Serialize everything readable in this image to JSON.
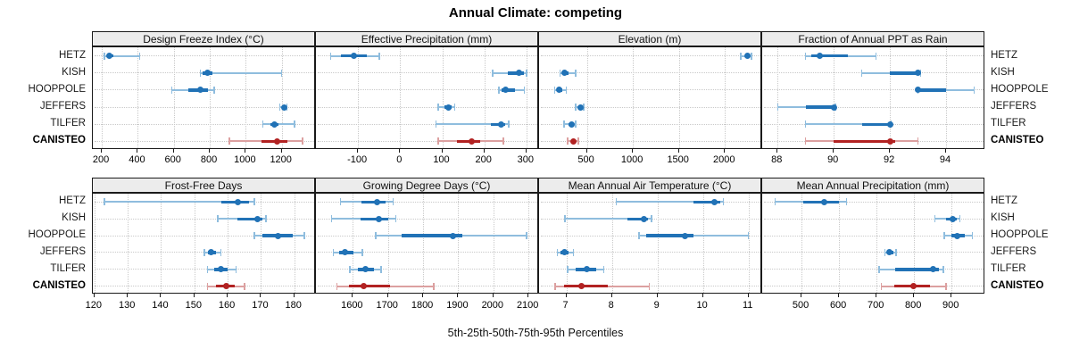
{
  "title": "Annual Climate: competing",
  "caption": "5th-25th-50th-75th-95th Percentiles",
  "stations": [
    "HETZ",
    "KISH",
    "HOOPPOLE",
    "JEFFERS",
    "TILFER",
    "CANISTEO"
  ],
  "highlight_station": "CANISTEO",
  "colors": {
    "series_solid": "#2172b6",
    "series_light": "#8fbdde",
    "highlight_solid": "#b22222",
    "highlight_light": "#dca0a0",
    "grid": "#c9c9c9",
    "strip_bg": "#ececec",
    "border": "#1a1a1a"
  },
  "chart_data": {
    "type": "dotplot",
    "subtype": "percentile-intervals",
    "percentile_labels": [
      "5th",
      "25th",
      "50th",
      "75th",
      "95th"
    ],
    "legend_position": "none",
    "grid": "dotted",
    "panels": [
      {
        "title": "Design Freeze Index (°C)",
        "row": 0,
        "col": 0,
        "xlim": [
          150,
          1390
        ],
        "ticks": [
          200,
          400,
          600,
          800,
          1000,
          1200
        ],
        "series": [
          {
            "station": "HETZ",
            "values": [
              215,
              228,
              240,
              265,
              410
            ]
          },
          {
            "station": "KISH",
            "values": [
              748,
              762,
              785,
              815,
              1200
            ]
          },
          {
            "station": "HOOPPOLE",
            "values": [
              590,
              680,
              750,
              790,
              825
            ]
          },
          {
            "station": "JEFFERS",
            "values": [
              1188,
              1202,
              1212,
              1222,
              1230
            ]
          },
          {
            "station": "TILFER",
            "values": [
              1095,
              1135,
              1158,
              1180,
              1270
            ]
          },
          {
            "station": "CANISTEO",
            "values": [
              910,
              1085,
              1175,
              1230,
              1315
            ]
          }
        ]
      },
      {
        "title": "Effective Precipitation (mm)",
        "row": 0,
        "col": 1,
        "xlim": [
          -200,
          330
        ],
        "ticks": [
          -100,
          0,
          100,
          200,
          300
        ],
        "series": [
          {
            "station": "HETZ",
            "values": [
              -165,
              -140,
              -110,
              -80,
              -50
            ]
          },
          {
            "station": "KISH",
            "values": [
              220,
              255,
              283,
              293,
              300
            ]
          },
          {
            "station": "HOOPPOLE",
            "values": [
              235,
              242,
              250,
              272,
              295
            ]
          },
          {
            "station": "JEFFERS",
            "values": [
              90,
              105,
              115,
              123,
              130
            ]
          },
          {
            "station": "TILFER",
            "values": [
              85,
              215,
              240,
              250,
              258
            ]
          },
          {
            "station": "CANISTEO",
            "values": [
              90,
              135,
              170,
              190,
              245
            ]
          }
        ]
      },
      {
        "title": "Elevation (m)",
        "row": 0,
        "col": 2,
        "xlim": [
          -20,
          2405
        ],
        "ticks": [
          500,
          1000,
          1500,
          2000
        ],
        "series": [
          {
            "station": "HETZ",
            "values": [
              2170,
              2220,
              2245,
              2268,
              2288
            ]
          },
          {
            "station": "KISH",
            "values": [
              210,
              235,
              260,
              300,
              380
            ]
          },
          {
            "station": "HOOPPOLE",
            "values": [
              150,
              175,
              195,
              230,
              275
            ]
          },
          {
            "station": "JEFFERS",
            "values": [
              380,
              418,
              435,
              452,
              465
            ]
          },
          {
            "station": "TILFER",
            "values": [
              250,
              300,
              333,
              356,
              380
            ]
          },
          {
            "station": "CANISTEO",
            "values": [
              290,
              330,
              355,
              377,
              405
            ]
          }
        ]
      },
      {
        "title": "Fraction of Annual PPT as Rain",
        "row": 0,
        "col": 3,
        "xlim": [
          87.45,
          95.4
        ],
        "ticks": [
          88,
          90,
          92,
          94
        ],
        "series": [
          {
            "station": "HETZ",
            "values": [
              89.0,
              89.2,
              89.5,
              90.5,
              91.5
            ]
          },
          {
            "station": "KISH",
            "values": [
              91.0,
              92.0,
              93.0,
              93.05,
              93.1
            ]
          },
          {
            "station": "HOOPPOLE",
            "values": [
              93.0,
              93.0,
              93.0,
              94.0,
              95.0
            ]
          },
          {
            "station": "JEFFERS",
            "values": [
              88.0,
              89.0,
              90.0,
              90.0,
              90.05
            ]
          },
          {
            "station": "TILFER",
            "values": [
              89.0,
              91.0,
              92.0,
              92.0,
              92.05
            ]
          },
          {
            "station": "CANISTEO",
            "values": [
              89.0,
              90.0,
              92.0,
              92.2,
              93.0
            ]
          }
        ]
      },
      {
        "title": "Frost-Free Days",
        "row": 1,
        "col": 0,
        "xlim": [
          119.5,
          186.5
        ],
        "ticks": [
          120,
          130,
          140,
          150,
          160,
          170,
          180
        ],
        "series": [
          {
            "station": "HETZ",
            "values": [
              123,
              158,
              163,
              166.5,
              168
            ]
          },
          {
            "station": "KISH",
            "values": [
              157,
              163,
              169,
              170.5,
              171.5
            ]
          },
          {
            "station": "HOOPPOLE",
            "values": [
              168,
              170.5,
              175,
              179.5,
              183
            ]
          },
          {
            "station": "JEFFERS",
            "values": [
              153,
              154,
              155,
              156.5,
              158
            ]
          },
          {
            "station": "TILFER",
            "values": [
              154,
              156,
              158,
              160,
              162.5
            ]
          },
          {
            "station": "CANISTEO",
            "values": [
              154,
              156.5,
              159.5,
              162,
              165
            ]
          }
        ]
      },
      {
        "title": "Growing Degree Days (°C)",
        "row": 1,
        "col": 1,
        "xlim": [
          1495,
          2130
        ],
        "ticks": [
          1600,
          1700,
          1800,
          1900,
          2000,
          2100
        ],
        "series": [
          {
            "station": "HETZ",
            "values": [
              1565,
              1625,
              1668,
              1692,
              1715
            ]
          },
          {
            "station": "KISH",
            "values": [
              1540,
              1622,
              1675,
              1700,
              1722
            ]
          },
          {
            "station": "HOOPPOLE",
            "values": [
              1665,
              1740,
              1885,
              1912,
              2095
            ]
          },
          {
            "station": "JEFFERS",
            "values": [
              1545,
              1560,
              1578,
              1602,
              1627
            ]
          },
          {
            "station": "TILFER",
            "values": [
              1592,
              1615,
              1637,
              1660,
              1681
            ]
          },
          {
            "station": "CANISTEO",
            "values": [
              1555,
              1590,
              1630,
              1705,
              1830
            ]
          }
        ]
      },
      {
        "title": "Mean Annual Air Temperature (°C)",
        "row": 1,
        "col": 2,
        "xlim": [
          6.4,
          11.3
        ],
        "ticks": [
          7,
          8,
          9,
          10,
          11
        ],
        "series": [
          {
            "station": "HETZ",
            "values": [
              8.1,
              9.8,
              10.25,
              10.37,
              10.45
            ]
          },
          {
            "station": "KISH",
            "values": [
              6.97,
              8.35,
              8.7,
              8.8,
              8.87
            ]
          },
          {
            "station": "HOOPPOLE",
            "values": [
              8.6,
              8.75,
              9.6,
              9.8,
              11.0
            ]
          },
          {
            "station": "JEFFERS",
            "values": [
              6.8,
              6.88,
              6.96,
              7.05,
              7.15
            ]
          },
          {
            "station": "TILFER",
            "values": [
              7.03,
              7.2,
              7.45,
              7.65,
              7.82
            ]
          },
          {
            "station": "CANISTEO",
            "values": [
              6.75,
              6.95,
              7.33,
              7.9,
              8.82
            ]
          }
        ]
      },
      {
        "title": "Mean Annual Precipitation (mm)",
        "row": 1,
        "col": 3,
        "xlim": [
          395,
          990
        ],
        "ticks": [
          500,
          600,
          700,
          800,
          900
        ],
        "series": [
          {
            "station": "HETZ",
            "values": [
              430,
              505,
              560,
              600,
              620
            ]
          },
          {
            "station": "KISH",
            "values": [
              855,
              885,
              902,
              915,
              922
            ]
          },
          {
            "station": "HOOPPOLE",
            "values": [
              880,
              900,
              914,
              935,
              956
            ]
          },
          {
            "station": "JEFFERS",
            "values": [
              722,
              728,
              735,
              744,
              752
            ]
          },
          {
            "station": "TILFER",
            "values": [
              707,
              750,
              851,
              866,
              878
            ]
          },
          {
            "station": "CANISTEO",
            "values": [
              713,
              748,
              798,
              843,
              885
            ]
          }
        ]
      }
    ]
  }
}
